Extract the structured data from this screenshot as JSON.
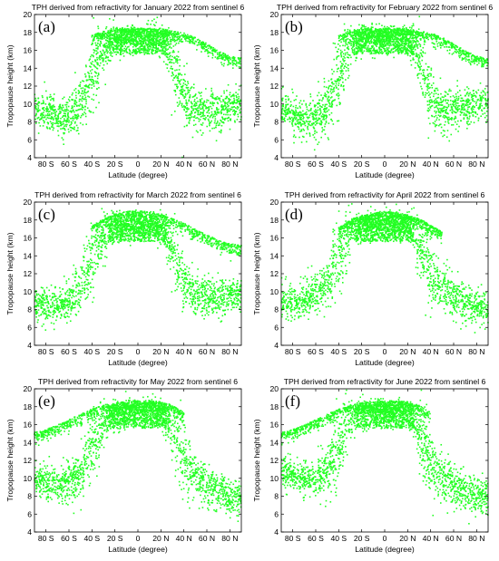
{
  "figure": {
    "colors": {
      "points": "#22ff22",
      "frame": "#000000",
      "text": "#000000"
    }
  },
  "chart_data": [
    {
      "type": "scatter",
      "panel_label": "(a)",
      "title": "TPH derived from refractivity for January 2022 from sentinel 6",
      "xlabel": "Latitude (degree)",
      "ylabel": "Tropopause height (km)",
      "xlim": [
        -90,
        90
      ],
      "ylim": [
        4,
        20
      ],
      "xticks": [
        -80,
        -60,
        -40,
        -20,
        0,
        20,
        40,
        60,
        80
      ],
      "xticklabels": [
        "80 S",
        "60 S",
        "40 S",
        "20 S",
        "0",
        "20 N",
        "40 N",
        "60 N",
        "80 N"
      ],
      "yticks": [
        4,
        6,
        8,
        10,
        12,
        14,
        16,
        18,
        20
      ],
      "grid": false,
      "series": [
        {
          "x": [
            -90,
            -80,
            -70,
            -60,
            -50,
            -45,
            -40,
            -35,
            -30,
            -25,
            -20,
            -10,
            0,
            10,
            20,
            25,
            30,
            35,
            40,
            45,
            50,
            60,
            70,
            80,
            90
          ],
          "y": [
            9.5,
            9,
            8.5,
            8.8,
            10,
            11.5,
            13,
            15,
            16.2,
            16.8,
            17.2,
            17.3,
            17.3,
            17.3,
            17.2,
            16.5,
            15,
            13,
            11,
            10,
            9.5,
            9,
            9.2,
            9.8,
            10.2
          ],
          "spread": [
            0.9,
            1,
            1,
            1.1,
            1.4,
            1.8,
            2,
            1.8,
            1.2,
            0.9,
            0.8,
            0.7,
            0.7,
            0.7,
            0.8,
            1,
            1.6,
            2,
            1.8,
            1.4,
            1.2,
            1.1,
            1,
            1,
            0.9
          ]
        },
        {
          "x": [
            -40,
            -30,
            -20,
            -10,
            0,
            10,
            20,
            30,
            40,
            50,
            60,
            70,
            80,
            90
          ],
          "y": [
            17.5,
            18,
            18.3,
            18.3,
            18.3,
            18.3,
            18.3,
            18,
            17.8,
            17.3,
            16.6,
            15.8,
            15.2,
            15
          ]
        }
      ]
    },
    {
      "type": "scatter",
      "panel_label": "(b)",
      "title": "TPH derived from refractivity for February 2022 from sentinel 6",
      "xlabel": "Latitude (degree)",
      "ylabel": "Tropopause height (km)",
      "xlim": [
        -90,
        90
      ],
      "ylim": [
        4,
        20
      ],
      "xticks": [
        -80,
        -60,
        -40,
        -20,
        0,
        20,
        40,
        60,
        80
      ],
      "xticklabels": [
        "80 S",
        "60 S",
        "40 S",
        "20 S",
        "0",
        "20 N",
        "40 N",
        "60 N",
        "80 N"
      ],
      "yticks": [
        4,
        6,
        8,
        10,
        12,
        14,
        16,
        18,
        20
      ],
      "grid": false,
      "series": [
        {
          "x": [
            -90,
            -80,
            -70,
            -60,
            -50,
            -45,
            -40,
            -35,
            -30,
            -25,
            -20,
            -10,
            0,
            10,
            20,
            25,
            30,
            35,
            40,
            45,
            50,
            60,
            70,
            80,
            90
          ],
          "y": [
            9.3,
            8.8,
            8.3,
            8.5,
            9.8,
            11.5,
            13,
            15,
            16.2,
            16.8,
            17.2,
            17.3,
            17.3,
            17.3,
            17.2,
            16.5,
            15,
            13,
            11,
            10,
            9.5,
            9.3,
            9.5,
            10,
            10.2
          ],
          "spread": [
            0.9,
            1,
            1,
            1.1,
            1.4,
            1.8,
            2,
            1.8,
            1.2,
            0.9,
            0.8,
            0.7,
            0.7,
            0.7,
            0.8,
            1,
            1.6,
            2,
            1.8,
            1.4,
            1.2,
            1.1,
            1,
            1,
            0.9
          ]
        },
        {
          "x": [
            -40,
            -30,
            -20,
            -10,
            0,
            10,
            20,
            30,
            40,
            50,
            60,
            70,
            80,
            90
          ],
          "y": [
            17.5,
            18,
            18.3,
            18.3,
            18.3,
            18.3,
            18.3,
            18,
            17.8,
            17.3,
            16.6,
            15.8,
            15.2,
            15
          ]
        }
      ]
    },
    {
      "type": "scatter",
      "panel_label": "(c)",
      "title": "TPH derived from refractivity for March 2022 from sentinel 6",
      "xlabel": "Latitude (degree)",
      "ylabel": "Tropopause height (km)",
      "xlim": [
        -90,
        90
      ],
      "ylim": [
        4,
        20
      ],
      "xticks": [
        -80,
        -60,
        -40,
        -20,
        0,
        20,
        40,
        60,
        80
      ],
      "xticklabels": [
        "80 S",
        "60 S",
        "40 S",
        "20 S",
        "0",
        "20 N",
        "40 N",
        "60 N",
        "80 N"
      ],
      "yticks": [
        4,
        6,
        8,
        10,
        12,
        14,
        16,
        18,
        20
      ],
      "grid": false,
      "series": [
        {
          "x": [
            -90,
            -80,
            -70,
            -60,
            -50,
            -45,
            -40,
            -35,
            -30,
            -25,
            -20,
            -10,
            0,
            10,
            20,
            25,
            30,
            35,
            40,
            45,
            50,
            60,
            70,
            80,
            90
          ],
          "y": [
            8.5,
            8.5,
            8.3,
            9,
            10.5,
            12,
            13.5,
            15,
            16.2,
            16.8,
            17.2,
            17.4,
            17.4,
            17.4,
            17.2,
            16.2,
            14.5,
            12.8,
            11,
            10,
            9.5,
            9.3,
            9.3,
            9.5,
            9.5
          ],
          "spread": [
            0.9,
            1,
            1,
            1.1,
            1.4,
            1.8,
            2,
            1.8,
            1.2,
            0.9,
            0.8,
            0.7,
            0.7,
            0.7,
            0.8,
            1,
            1.6,
            2,
            1.8,
            1.4,
            1.2,
            1.1,
            1,
            1,
            0.9
          ]
        },
        {
          "x": [
            -40,
            -30,
            -20,
            -10,
            0,
            10,
            20,
            30,
            40,
            50,
            60,
            70,
            80,
            90
          ],
          "y": [
            17.2,
            18,
            18.5,
            18.8,
            18.9,
            18.8,
            18.5,
            18,
            17.5,
            16.8,
            16.2,
            15.6,
            15.2,
            15
          ]
        }
      ]
    },
    {
      "type": "scatter",
      "panel_label": "(d)",
      "title": "TPH derived from refractivity for April 2022 from sentinel 6",
      "xlabel": "Latitude (degree)",
      "ylabel": "Tropopause height (km)",
      "xlim": [
        -90,
        90
      ],
      "ylim": [
        4,
        20
      ],
      "xticks": [
        -80,
        -60,
        -40,
        -20,
        0,
        20,
        40,
        60,
        80
      ],
      "xticklabels": [
        "80 S",
        "60 S",
        "40 S",
        "20 S",
        "0",
        "20 N",
        "40 N",
        "60 N",
        "80 N"
      ],
      "yticks": [
        4,
        6,
        8,
        10,
        12,
        14,
        16,
        18,
        20
      ],
      "grid": false,
      "series": [
        {
          "x": [
            -90,
            -80,
            -70,
            -60,
            -50,
            -45,
            -40,
            -35,
            -30,
            -25,
            -20,
            -10,
            0,
            10,
            20,
            25,
            30,
            35,
            40,
            45,
            50,
            60,
            70,
            80,
            90
          ],
          "y": [
            9,
            9,
            9,
            9.8,
            11,
            12.5,
            14,
            15.5,
            16.5,
            17,
            17.2,
            17.4,
            17.4,
            17.4,
            17.2,
            16.5,
            15,
            13.5,
            12,
            11,
            10.2,
            9.5,
            8.8,
            8.2,
            8
          ],
          "spread": [
            0.9,
            1,
            1,
            1.1,
            1.4,
            1.8,
            2,
            1.8,
            1.2,
            0.9,
            0.8,
            0.7,
            0.7,
            0.7,
            0.8,
            1,
            1.6,
            2,
            1.8,
            1.4,
            1.2,
            1.1,
            1,
            1,
            0.9
          ]
        },
        {
          "x": [
            -40,
            -30,
            -20,
            -10,
            0,
            10,
            20,
            30,
            40,
            50
          ],
          "y": [
            17,
            17.8,
            18.3,
            18.6,
            18.8,
            18.7,
            18.4,
            18,
            17.3,
            16.5
          ]
        }
      ]
    },
    {
      "type": "scatter",
      "panel_label": "(e)",
      "title": "TPH derived from refractivity for May 2022 from sentinel 6",
      "xlabel": "Latitude (degree)",
      "ylabel": "Tropopause height (km)",
      "xlim": [
        -90,
        90
      ],
      "ylim": [
        4,
        20
      ],
      "xticks": [
        -80,
        -60,
        -40,
        -20,
        0,
        20,
        40,
        60,
        80
      ],
      "xticklabels": [
        "80 S",
        "60 S",
        "40 S",
        "20 S",
        "0",
        "20 N",
        "40 N",
        "60 N",
        "80 N"
      ],
      "yticks": [
        4,
        6,
        8,
        10,
        12,
        14,
        16,
        18,
        20
      ],
      "grid": false,
      "series": [
        {
          "x": [
            -90,
            -80,
            -70,
            -60,
            -50,
            -45,
            -40,
            -35,
            -30,
            -25,
            -20,
            -10,
            0,
            10,
            20,
            25,
            30,
            35,
            40,
            45,
            50,
            60,
            70,
            80,
            90
          ],
          "y": [
            10,
            9.8,
            9.3,
            9.5,
            10.5,
            12,
            13.5,
            15,
            16.2,
            16.8,
            17.2,
            17.4,
            17.4,
            17.4,
            17.3,
            16.5,
            15,
            13.5,
            12,
            11,
            10.3,
            9.5,
            8.5,
            7.8,
            7.5
          ],
          "spread": [
            0.9,
            1,
            1,
            1.1,
            1.4,
            1.8,
            2,
            1.8,
            1.2,
            0.9,
            0.8,
            0.7,
            0.7,
            0.7,
            0.8,
            1,
            1.6,
            2,
            1.8,
            1.4,
            1.2,
            1.1,
            1,
            1,
            0.9
          ]
        },
        {
          "x": [
            -90,
            -80,
            -70,
            -60,
            -50,
            -40,
            -30,
            -20,
            -10,
            0,
            10,
            20,
            30,
            40
          ],
          "y": [
            15,
            15.3,
            15.8,
            16.4,
            17,
            17.6,
            18,
            18.3,
            18.4,
            18.5,
            18.5,
            18.4,
            18,
            17.2
          ]
        }
      ]
    },
    {
      "type": "scatter",
      "panel_label": "(f)",
      "title": "TPH derived from refractivity for June 2022 from sentinel 6",
      "xlabel": "Latitude (degree)",
      "ylabel": "Tropopause height (km)",
      "xlim": [
        -90,
        90
      ],
      "ylim": [
        4,
        20
      ],
      "xticks": [
        -80,
        -60,
        -40,
        -20,
        0,
        20,
        40,
        60,
        80
      ],
      "xticklabels": [
        "80 S",
        "60 S",
        "40 S",
        "20 S",
        "0",
        "20 N",
        "40 N",
        "60 N",
        "80 N"
      ],
      "yticks": [
        4,
        6,
        8,
        10,
        12,
        14,
        16,
        18,
        20
      ],
      "grid": false,
      "series": [
        {
          "x": [
            -90,
            -80,
            -70,
            -60,
            -50,
            -45,
            -40,
            -35,
            -30,
            -25,
            -20,
            -10,
            0,
            10,
            20,
            25,
            30,
            35,
            40,
            45,
            50,
            60,
            70,
            80,
            90
          ],
          "y": [
            10.5,
            10.3,
            9.8,
            9.8,
            10.8,
            12.2,
            13.7,
            15.2,
            16.3,
            16.9,
            17.2,
            17.4,
            17.4,
            17.4,
            17.3,
            16.5,
            15,
            13.5,
            12,
            11,
            10.2,
            9.3,
            8.5,
            8,
            8
          ],
          "spread": [
            0.9,
            1,
            1,
            1.1,
            1.4,
            1.8,
            2,
            1.8,
            1.2,
            0.9,
            0.8,
            0.7,
            0.7,
            0.7,
            0.8,
            1,
            1.6,
            2,
            1.8,
            1.4,
            1.2,
            1.1,
            1,
            1,
            0.9
          ]
        },
        {
          "x": [
            -90,
            -80,
            -70,
            -60,
            -50,
            -40,
            -30,
            -20,
            -10,
            0,
            10,
            20,
            30,
            40
          ],
          "y": [
            15,
            15.3,
            15.8,
            16.4,
            17,
            17.6,
            18,
            18.3,
            18.4,
            18.5,
            18.5,
            18.4,
            18,
            17.2
          ]
        }
      ]
    }
  ]
}
